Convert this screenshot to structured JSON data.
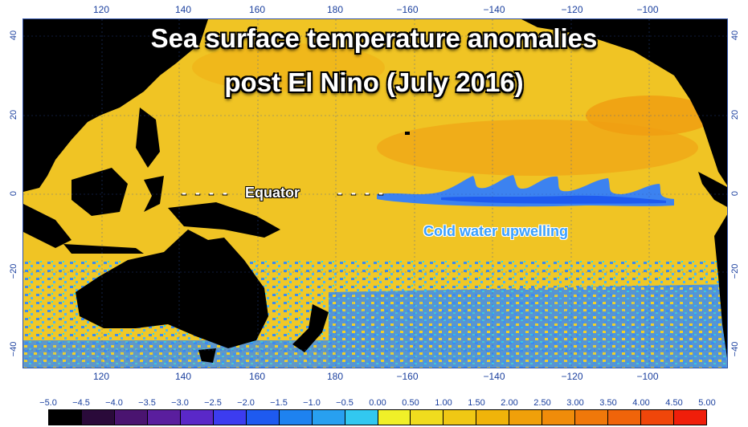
{
  "title": {
    "line1": "Sea surface temperature anomalies",
    "line2": "post El Nino (July 2016)"
  },
  "annotations": {
    "equator": "Equator",
    "dashes": "- - - -",
    "upwelling": "Cold water upwelling"
  },
  "axes": {
    "longitudes": [
      "120",
      "140",
      "160",
      "180",
      "−160",
      "−140",
      "−120",
      "−100"
    ],
    "latitudes": [
      "40",
      "20",
      "0",
      "−20",
      "−40"
    ]
  },
  "colorbar": {
    "labels": [
      "−5.0",
      "−4.5",
      "−4.0",
      "−3.5",
      "−3.0",
      "−2.5",
      "−2.0",
      "−1.5",
      "−1.0",
      "−0.5",
      "0.00",
      "0.50",
      "1.00",
      "1.50",
      "2.00",
      "2.50",
      "3.00",
      "3.50",
      "4.00",
      "4.50",
      "5.00"
    ],
    "colors": [
      "#000000",
      "#2a0a3a",
      "#4a1470",
      "#5a1e9e",
      "#5a28c8",
      "#3c3cf0",
      "#1e5af0",
      "#1e82f0",
      "#28a0f0",
      "#32c8f0",
      "#f0f028",
      "#f0dc1e",
      "#f0c814",
      "#f0b40a",
      "#f0a00a",
      "#f08c0a",
      "#f0780a",
      "#f0640a",
      "#f0460a",
      "#f01e0a"
    ]
  },
  "colors": {
    "land": "#000000",
    "ocean_warm": "#f0c020",
    "cold_anomaly": "#3c82f0",
    "grid_line": "#3355aa"
  }
}
